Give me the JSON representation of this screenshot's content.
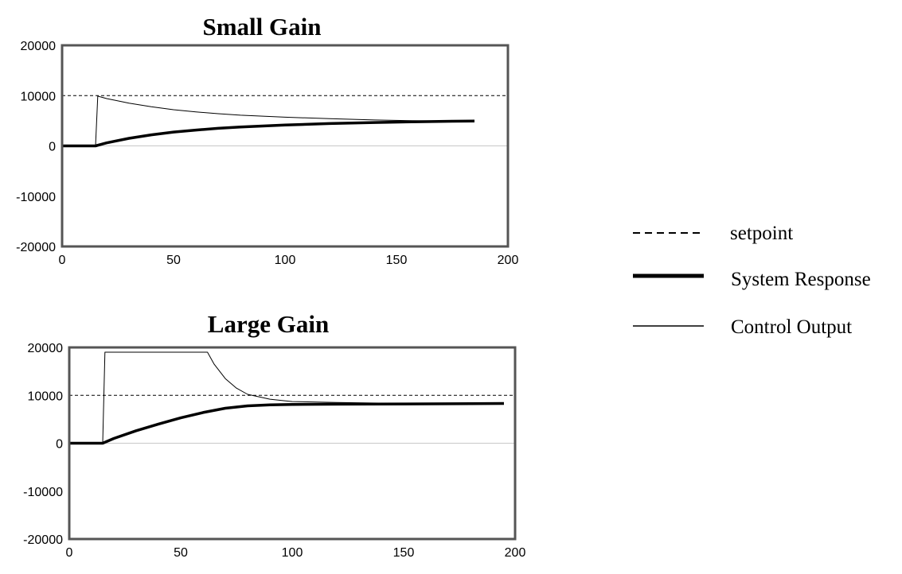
{
  "legend": {
    "items": [
      {
        "key": "setpoint",
        "label": "setpoint",
        "style": "dashed"
      },
      {
        "key": "response",
        "label": "System Response",
        "style": "thick"
      },
      {
        "key": "control",
        "label": "Control Output",
        "style": "thin"
      }
    ]
  },
  "chart_data": [
    {
      "type": "line",
      "title": "Small Gain",
      "xlabel": "",
      "ylabel": "",
      "xlim": [
        0,
        200
      ],
      "ylim": [
        -20000,
        20000
      ],
      "xticks": [
        "0",
        "50",
        "100",
        "150",
        "200"
      ],
      "yticks": [
        "20000",
        "10000",
        "0",
        "-10000",
        "-20000"
      ],
      "grid": false,
      "setpoint": 10000,
      "series": [
        {
          "name": "System Response",
          "x": [
            0,
            15,
            20,
            30,
            40,
            50,
            60,
            70,
            80,
            90,
            100,
            120,
            140,
            160,
            175,
            185
          ],
          "values": [
            0,
            0,
            600,
            1500,
            2200,
            2750,
            3150,
            3500,
            3750,
            3950,
            4150,
            4450,
            4650,
            4800,
            4900,
            4950
          ]
        },
        {
          "name": "Control Output",
          "x": [
            0,
            15,
            16,
            20,
            30,
            40,
            50,
            60,
            70,
            80,
            100,
            120,
            140,
            160,
            175
          ],
          "values": [
            0,
            0,
            9900,
            9400,
            8500,
            7800,
            7200,
            6750,
            6400,
            6100,
            5700,
            5400,
            5150,
            5000,
            4950
          ]
        }
      ]
    },
    {
      "type": "line",
      "title": "Large Gain",
      "xlabel": "",
      "ylabel": "",
      "xlim": [
        0,
        200
      ],
      "ylim": [
        -20000,
        20000
      ],
      "xticks": [
        "0",
        "50",
        "100",
        "150",
        "200"
      ],
      "yticks": [
        "20000",
        "10000",
        "0",
        "-10000",
        "-20000"
      ],
      "grid": false,
      "setpoint": 10000,
      "series": [
        {
          "name": "System Response",
          "x": [
            0,
            15,
            20,
            30,
            40,
            50,
            60,
            70,
            80,
            90,
            100,
            120,
            150,
            180,
            195
          ],
          "values": [
            0,
            0,
            1000,
            2600,
            4000,
            5300,
            6400,
            7300,
            7800,
            8000,
            8100,
            8150,
            8200,
            8250,
            8300
          ]
        },
        {
          "name": "Control Output",
          "x": [
            0,
            15,
            16,
            30,
            50,
            62,
            65,
            70,
            75,
            80,
            90,
            100,
            120,
            145
          ],
          "values": [
            0,
            0,
            19000,
            19000,
            19000,
            19000,
            16500,
            13500,
            11500,
            10200,
            9200,
            8700,
            8500,
            8350
          ]
        }
      ]
    }
  ]
}
